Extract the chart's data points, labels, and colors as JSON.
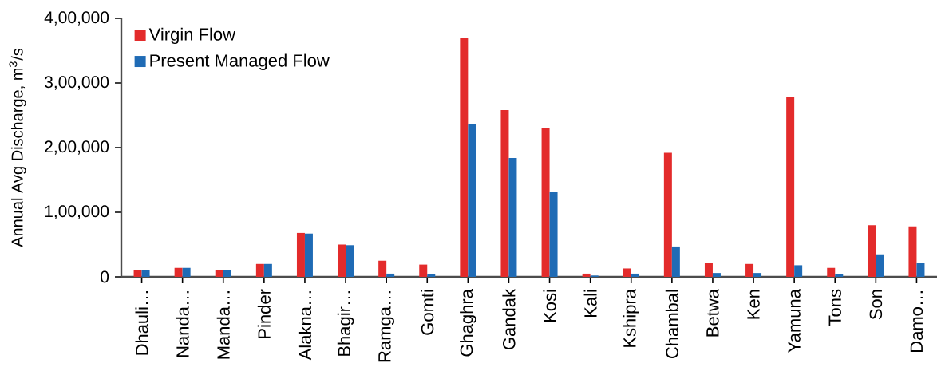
{
  "chart_data": {
    "type": "bar",
    "ylabel": "Annual  Avg Discharge, m$^{3}$/s",
    "categories": [
      "Dhauli…",
      "Nanda…",
      "Manda…",
      "Pinder",
      "Alakna…",
      "Bhagir…",
      "Ramga…",
      "Gomti",
      "Ghaghra",
      "Gandak",
      "Kosi",
      "Kali",
      "Kshipra",
      "Chambal",
      "Betwa",
      "Ken",
      "Yamuna",
      "Tons",
      "Son",
      "Damo…"
    ],
    "series": [
      {
        "name": "Virgin Flow",
        "color": "#e32b2b",
        "values": [
          10000,
          14000,
          11000,
          20000,
          68000,
          50000,
          25000,
          19000,
          370000,
          258000,
          230000,
          5000,
          13000,
          192000,
          22000,
          20000,
          278000,
          14000,
          80000,
          78000
        ]
      },
      {
        "name": "Present Managed Flow",
        "color": "#1f6bb5",
        "values": [
          10000,
          14000,
          11000,
          20000,
          67000,
          49000,
          5000,
          4000,
          236000,
          184000,
          132000,
          2000,
          5000,
          47000,
          6000,
          6000,
          18000,
          5000,
          35000,
          22000
        ]
      }
    ],
    "ylim": [
      0,
      400000
    ],
    "yticks": [
      0,
      {
        "value": 100000,
        "label": "1,00,000"
      },
      {
        "value": 200000,
        "label": "2,00,000"
      },
      {
        "value": 300000,
        "label": "3,00,000"
      },
      {
        "value": 400000,
        "label": "4,00,000"
      }
    ],
    "grid": false,
    "legend": "top left"
  }
}
